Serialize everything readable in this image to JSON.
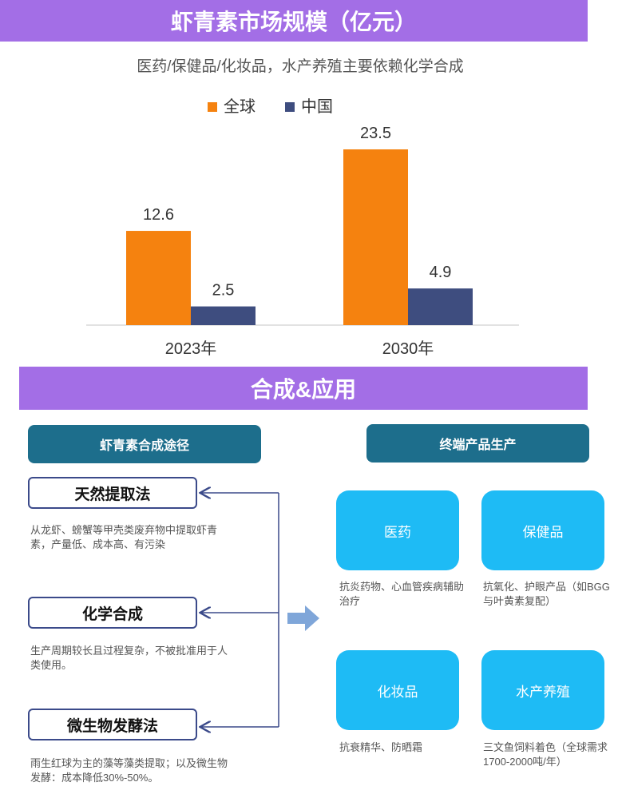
{
  "top_banner": {
    "title": "虾青素市场规模（亿元）"
  },
  "subtitle": "医药/保健品/化妆品，水产养殖主要依赖化学合成",
  "chart_data": {
    "type": "bar",
    "title": "虾青素市场规模（亿元）",
    "categories": [
      "2023年",
      "2030年"
    ],
    "series": [
      {
        "name": "全球",
        "values": [
          12.6,
          23.5
        ],
        "color": "#f5820f"
      },
      {
        "name": "中国",
        "values": [
          2.5,
          4.9
        ],
        "color": "#3e4d7f"
      }
    ],
    "value_labels": [
      [
        "12.6",
        "23.5"
      ],
      [
        "2.5",
        "4.9"
      ]
    ],
    "ylim": [
      0,
      23.5
    ],
    "legend_position": "top",
    "grid": false
  },
  "bottom_banner": {
    "title": "合成&应用"
  },
  "left_panel": {
    "title": "虾青素合成途径",
    "methods": [
      {
        "name": "天然提取法",
        "desc": "从龙虾、螃蟹等甲壳类废弃物中提取虾青素，产量低、成本高、有污染"
      },
      {
        "name": "化学合成",
        "desc": "生产周期较长且过程复杂，不被批准用于人类使用。"
      },
      {
        "name": "微生物发酵法",
        "desc": "雨生红球为主的藻等藻类提取；以及微生物发酵：成本降低30%-50%。"
      }
    ]
  },
  "right_panel": {
    "title": "终端产品生产",
    "products": [
      {
        "name": "医药",
        "desc": "抗炎药物、心血管疾病辅助治疗"
      },
      {
        "name": "保健品",
        "desc": "抗氧化、护眼产品（如BGG与叶黄素复配）"
      },
      {
        "name": "化妆品",
        "desc": "抗衰精华、防晒霜"
      },
      {
        "name": "水产养殖",
        "desc": "三文鱼饲料着色（全球需求1700-2000吨/年）"
      }
    ]
  },
  "colors": {
    "banner": "#a36ee6",
    "pill": "#1d6e8c",
    "card": "#1ebbf5",
    "connector": "#3b4a8a",
    "arrow": "#7fa6d9"
  }
}
